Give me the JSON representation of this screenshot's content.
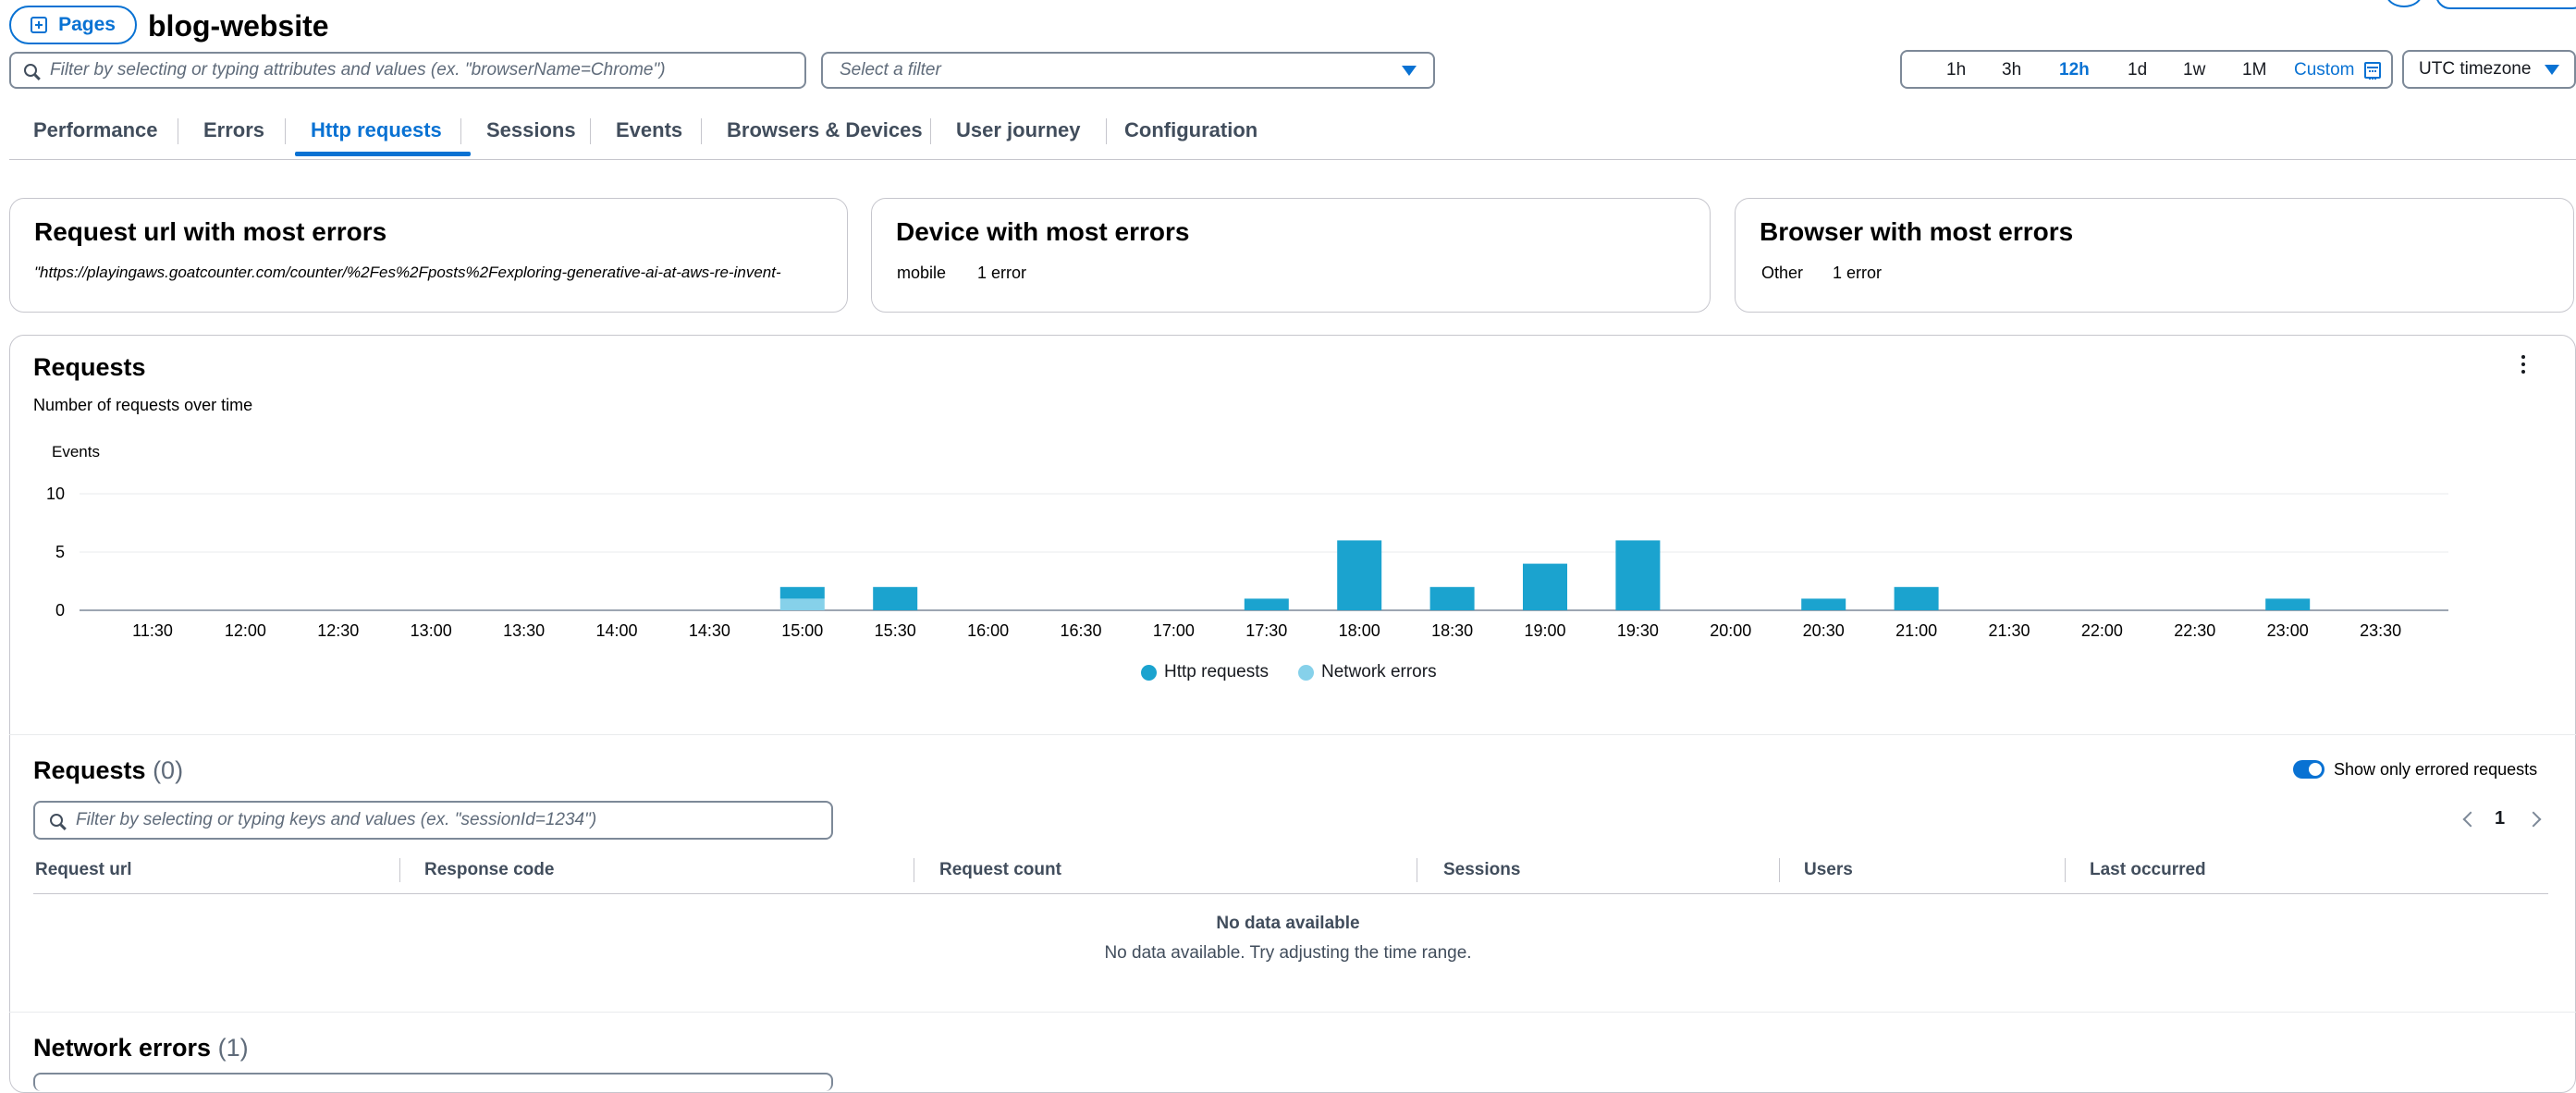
{
  "header": {
    "pages_button": "Pages",
    "app_title": "blog-website"
  },
  "filters": {
    "search_placeholder": "Filter by selecting or typing attributes and values (ex. \"browserName=Chrome\")",
    "select_placeholder": "Select a filter",
    "time_options": [
      "1h",
      "3h",
      "12h",
      "1d",
      "1w",
      "1M"
    ],
    "time_selected": "12h",
    "custom_label": "Custom",
    "timezone": "UTC timezone"
  },
  "tabs": [
    "Performance",
    "Errors",
    "Http requests",
    "Sessions",
    "Events",
    "Browsers & Devices",
    "User journey",
    "Configuration"
  ],
  "active_tab": "Http requests",
  "summary": {
    "url_card": {
      "title": "Request url with most errors",
      "value": "\"https://playingaws.goatcounter.com/counter/%2Fes%2Fposts%2Fexploring-generative-ai-at-aws-re-invent-"
    },
    "device_card": {
      "title": "Device with most errors",
      "name": "mobile",
      "count": "1 error"
    },
    "browser_card": {
      "title": "Browser with most errors",
      "name": "Other",
      "count": "1 error"
    }
  },
  "requests_chart": {
    "title": "Requests",
    "subtitle": "Number of requests over time"
  },
  "chart_data": {
    "type": "bar",
    "ylabel": "Events",
    "ylim": [
      0,
      10
    ],
    "yticks": [
      0,
      5,
      10
    ],
    "x_labels": [
      "11:30",
      "12:00",
      "12:30",
      "13:00",
      "13:30",
      "14:00",
      "14:30",
      "15:00",
      "15:30",
      "16:00",
      "16:30",
      "17:00",
      "17:30",
      "18:00",
      "18:30",
      "19:00",
      "19:30",
      "20:00",
      "20:30",
      "21:00",
      "21:30",
      "22:00",
      "22:30",
      "23:00",
      "23:30"
    ],
    "stacked": true,
    "series": [
      {
        "name": "Http requests",
        "color": "#1ba3cf",
        "values": [
          0,
          0,
          0,
          0,
          0,
          0,
          0,
          1,
          2,
          0,
          0,
          0,
          1,
          6,
          2,
          4,
          6,
          0,
          1,
          2,
          0,
          0,
          0,
          1,
          0
        ]
      },
      {
        "name": "Network errors",
        "color": "#86d1ea",
        "values": [
          0,
          0,
          0,
          0,
          0,
          0,
          0,
          1,
          0,
          0,
          0,
          0,
          0,
          0,
          0,
          0,
          0,
          0,
          0,
          0,
          0,
          0,
          0,
          0,
          0
        ]
      }
    ],
    "grid": true,
    "legend": "bottom-center"
  },
  "requests_table": {
    "title": "Requests",
    "count": "(0)",
    "toggle_label": "Show only errored requests",
    "toggle_on": true,
    "filter_placeholder": "Filter by selecting or typing keys and values (ex. \"sessionId=1234\")",
    "page": "1",
    "columns": [
      "Request url",
      "Response code",
      "Request count",
      "Sessions",
      "Users",
      "Last occurred"
    ],
    "empty_title": "No data available",
    "empty_text": "No data available. Try adjusting the time range."
  },
  "network_errors": {
    "title": "Network errors",
    "count": "(1)"
  }
}
